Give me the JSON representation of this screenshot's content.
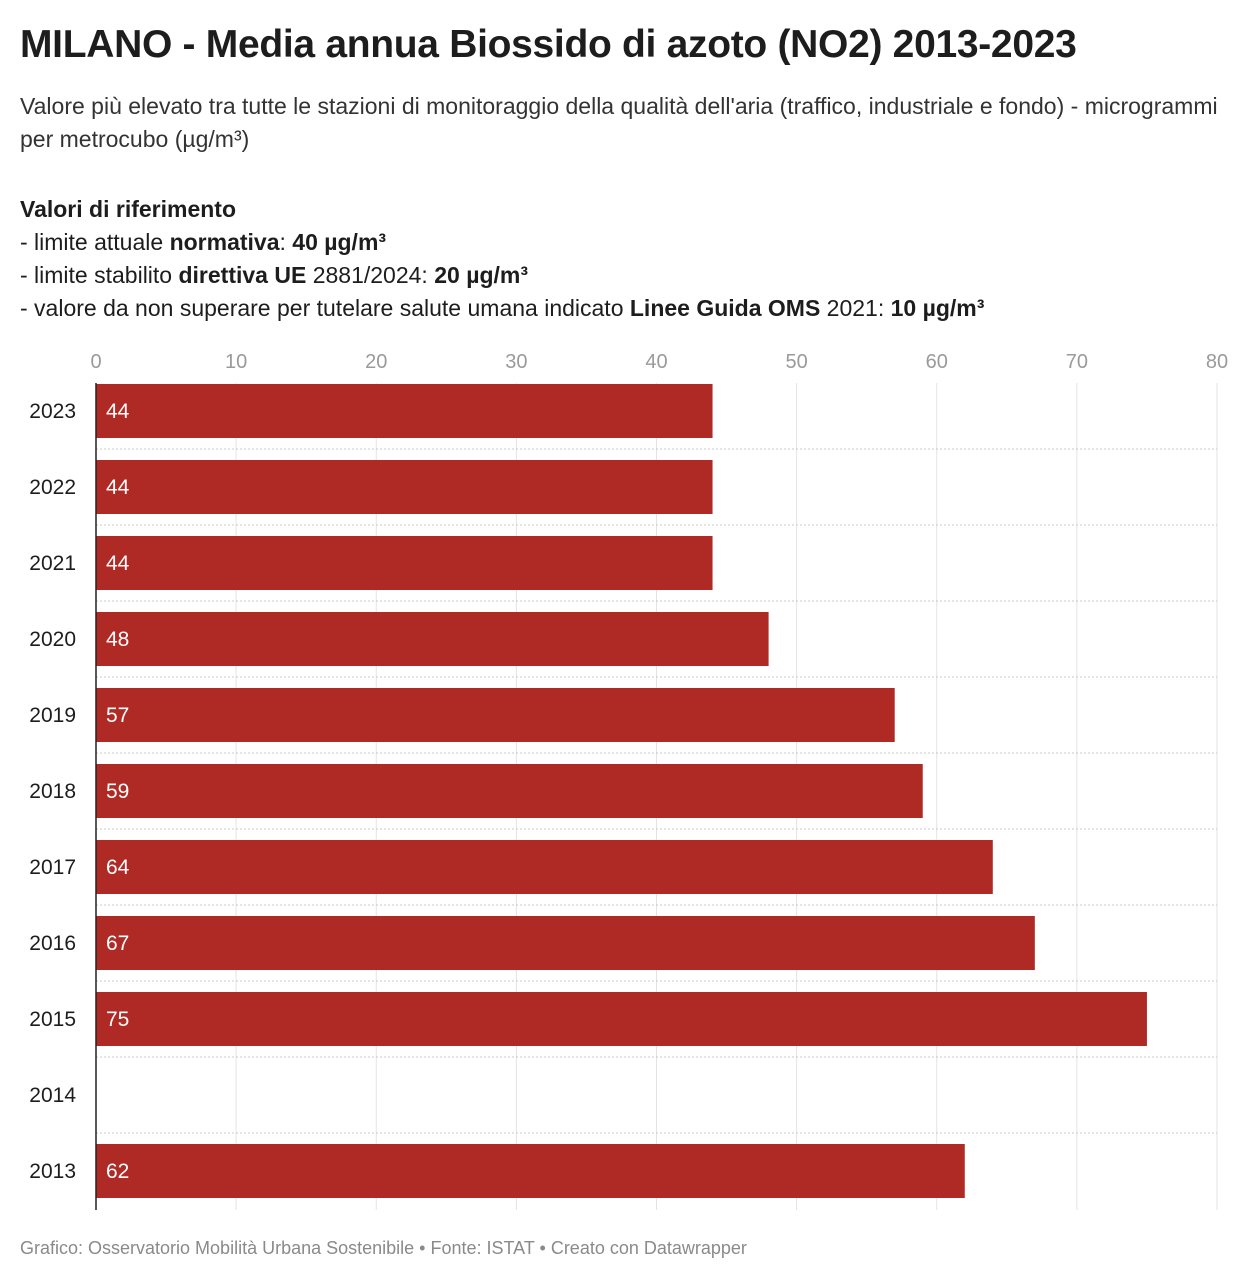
{
  "header": {
    "title": "MILANO - Media annua Biossido di azoto (NO2) 2013-2023",
    "subtitle": "Valore più elevato tra tutte le stazioni di monitoraggio della qualità dell'aria (traffico, industriale e fondo) - microgrammi per metrocubo (µg/m³)"
  },
  "reference": {
    "heading": "Valori di riferimento",
    "line1": {
      "prefix": "- limite attuale ",
      "bold": "normativa",
      "mid": ": ",
      "value": "40 µg/m³"
    },
    "line2": {
      "prefix": "- limite stabilito ",
      "bold": "direttiva UE",
      "mid": " 2881/2024: ",
      "value": "20 µg/m³"
    },
    "line3": {
      "prefix": "- valore da non superare per tutelare salute umana indicato ",
      "bold": "Linee Guida OMS",
      "mid": " 2021: ",
      "value": "10 µg/m³"
    }
  },
  "chart_data": {
    "type": "bar",
    "orientation": "horizontal",
    "categories": [
      "2023",
      "2022",
      "2021",
      "2020",
      "2019",
      "2018",
      "2017",
      "2016",
      "2015",
      "2014",
      "2013"
    ],
    "values": [
      44,
      44,
      44,
      48,
      57,
      59,
      64,
      67,
      75,
      null,
      62
    ],
    "value_labels": [
      "44",
      "44",
      "44",
      "48",
      "57",
      "59",
      "64",
      "67",
      "75",
      "",
      "62"
    ],
    "xlim": [
      0,
      80
    ],
    "x_ticks": [
      0,
      10,
      20,
      30,
      40,
      50,
      60,
      70,
      80
    ],
    "x_axis_position": "top",
    "grid": true,
    "bar_color": "#b02a25",
    "label_color": "#ffffff"
  },
  "footer": {
    "credit": "Grafico: Osservatorio Mobilità Urbana Sostenibile • Fonte: ISTAT • Creato con Datawrapper"
  }
}
